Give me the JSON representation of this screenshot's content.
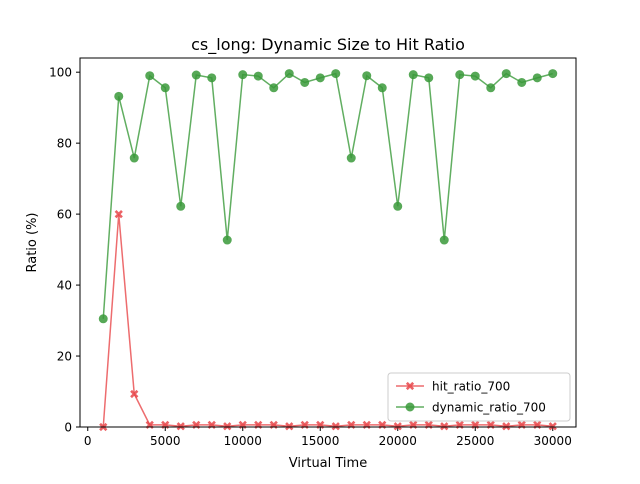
{
  "chart_data": {
    "type": "line",
    "title": "cs_long: Dynamic Size to Hit Ratio",
    "xlabel": "Virtual Time",
    "ylabel": "Ratio (%)",
    "xlim": [
      -500,
      31500
    ],
    "ylim": [
      0,
      104
    ],
    "xticks": [
      0,
      5000,
      10000,
      15000,
      20000,
      25000,
      30000
    ],
    "yticks": [
      0,
      20,
      40,
      60,
      80,
      100
    ],
    "grid": false,
    "legend_position": "lower-right",
    "x": [
      1000,
      2000,
      3000,
      4000,
      5000,
      6000,
      7000,
      8000,
      9000,
      10000,
      11000,
      12000,
      13000,
      14000,
      15000,
      16000,
      17000,
      18000,
      19000,
      20000,
      21000,
      22000,
      23000,
      24000,
      25000,
      26000,
      27000,
      28000,
      29000,
      30000
    ],
    "series": [
      {
        "name": "hit_ratio_700",
        "color": "#e8474a",
        "marker": "x",
        "values": [
          0.0,
          60.0,
          9.3,
          0.6,
          0.6,
          0.2,
          0.6,
          0.6,
          0.2,
          0.6,
          0.6,
          0.6,
          0.2,
          0.6,
          0.6,
          0.2,
          0.6,
          0.6,
          0.6,
          0.2,
          0.6,
          0.6,
          0.2,
          0.6,
          0.6,
          0.6,
          0.2,
          0.6,
          0.6,
          0.2
        ]
      },
      {
        "name": "dynamic_ratio_700",
        "color": "#3a9a3a",
        "marker": "o",
        "values": [
          30.5,
          93.2,
          75.8,
          99.0,
          95.6,
          62.2,
          99.2,
          98.4,
          52.7,
          99.3,
          98.9,
          95.6,
          99.6,
          97.1,
          98.4,
          99.6,
          75.8,
          99.0,
          95.6,
          62.2,
          99.3,
          98.4,
          52.7,
          99.3,
          98.9,
          95.6,
          99.6,
          97.1,
          98.4,
          99.6
        ]
      }
    ]
  }
}
